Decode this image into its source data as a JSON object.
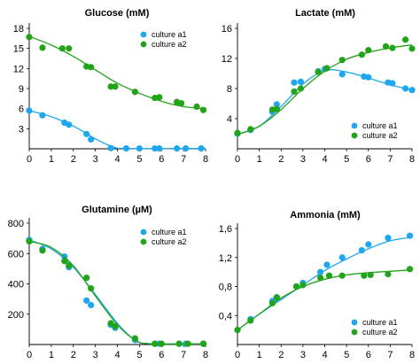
{
  "colors": {
    "culture_a1": "#1ea7f0",
    "culture_a2": "#21a31a"
  },
  "chart_data": [
    {
      "type": "scatter",
      "title": "Glucose (mM)",
      "xlim": [
        0,
        8
      ],
      "ylim": [
        0,
        18
      ],
      "x_ticks": [
        "0",
        "1",
        "2",
        "3",
        "4",
        "5",
        "6",
        "7",
        "8"
      ],
      "y_ticks": [
        "3",
        "6",
        "9",
        "12",
        "15",
        "18"
      ],
      "y_tick_values": [
        3,
        6,
        9,
        12,
        15,
        18
      ],
      "legend_position": "top-right",
      "series": [
        {
          "name": "culture a1",
          "color_key": "culture_a1",
          "points": [
            [
              0,
              5.7
            ],
            [
              0.6,
              5.0
            ],
            [
              1.6,
              3.9
            ],
            [
              1.8,
              3.6
            ],
            [
              2.6,
              2.2
            ],
            [
              2.8,
              1.4
            ],
            [
              3.7,
              0.1
            ],
            [
              4.4,
              0.05
            ],
            [
              5.0,
              0.05
            ],
            [
              5.7,
              0.05
            ],
            [
              5.9,
              0.05
            ],
            [
              6.7,
              0.05
            ],
            [
              7.1,
              0.05
            ],
            [
              7.8,
              0.05
            ]
          ],
          "fit": [
            [
              0,
              5.7
            ],
            [
              1,
              4.8
            ],
            [
              2,
              3.4
            ],
            [
              3,
              1.5
            ],
            [
              3.8,
              0.3
            ],
            [
              4.5,
              0.05
            ],
            [
              8,
              0.05
            ]
          ]
        },
        {
          "name": "culture a2",
          "color_key": "culture_a2",
          "points": [
            [
              0,
              16.7
            ],
            [
              0.6,
              15.1
            ],
            [
              1.5,
              15.0
            ],
            [
              1.8,
              15.0
            ],
            [
              2.6,
              12.3
            ],
            [
              2.8,
              12.2
            ],
            [
              3.7,
              9.3
            ],
            [
              3.9,
              9.3
            ],
            [
              4.8,
              8.5
            ],
            [
              5.7,
              7.6
            ],
            [
              5.9,
              7.7
            ],
            [
              6.7,
              7.0
            ],
            [
              6.9,
              6.8
            ],
            [
              7.6,
              6.3
            ],
            [
              7.9,
              5.8
            ]
          ],
          "fit": [
            [
              0,
              16.8
            ],
            [
              1,
              15.5
            ],
            [
              2,
              13.8
            ],
            [
              3,
              11.8
            ],
            [
              4,
              9.8
            ],
            [
              5,
              8.3
            ],
            [
              6,
              7.1
            ],
            [
              7,
              6.3
            ],
            [
              8,
              6.0
            ]
          ]
        }
      ]
    },
    {
      "type": "scatter",
      "title": "Lactate (mM)",
      "xlim": [
        0,
        8
      ],
      "ylim": [
        0,
        16
      ],
      "x_ticks": [
        "0",
        "1",
        "2",
        "3",
        "4",
        "5",
        "6",
        "7",
        "8"
      ],
      "y_ticks": [
        "4",
        "8",
        "12",
        "16"
      ],
      "y_tick_values": [
        4,
        8,
        12,
        16
      ],
      "legend_position": "bottom-right",
      "series": [
        {
          "name": "culture a1",
          "color_key": "culture_a1",
          "points": [
            [
              0,
              2.0
            ],
            [
              0.6,
              2.5
            ],
            [
              1.6,
              4.9
            ],
            [
              1.8,
              5.9
            ],
            [
              2.6,
              8.8
            ],
            [
              2.9,
              8.9
            ],
            [
              3.7,
              10.3
            ],
            [
              4.0,
              10.6
            ],
            [
              4.8,
              9.9
            ],
            [
              5.8,
              9.6
            ],
            [
              6.0,
              9.5
            ],
            [
              6.9,
              8.8
            ],
            [
              7.1,
              8.7
            ],
            [
              7.7,
              8.0
            ],
            [
              8.0,
              7.8
            ]
          ],
          "fit": [
            [
              0,
              1.9
            ],
            [
              1,
              3.0
            ],
            [
              2,
              5.6
            ],
            [
              3,
              8.6
            ],
            [
              4,
              10.4
            ],
            [
              5,
              10.2
            ],
            [
              6,
              9.4
            ],
            [
              7,
              8.5
            ],
            [
              8,
              7.8
            ]
          ]
        },
        {
          "name": "culture a2",
          "color_key": "culture_a2",
          "points": [
            [
              0,
              2.1
            ],
            [
              0.6,
              2.6
            ],
            [
              1.6,
              5.2
            ],
            [
              1.8,
              5.3
            ],
            [
              2.6,
              7.6
            ],
            [
              2.9,
              8.0
            ],
            [
              3.7,
              10.2
            ],
            [
              4.1,
              10.7
            ],
            [
              4.8,
              11.8
            ],
            [
              5.7,
              12.5
            ],
            [
              6.0,
              13.1
            ],
            [
              6.8,
              13.6
            ],
            [
              7.1,
              13.4
            ],
            [
              7.7,
              14.5
            ],
            [
              8.0,
              13.3
            ]
          ],
          "fit": [
            [
              0,
              1.9
            ],
            [
              1,
              3.0
            ],
            [
              2,
              5.2
            ],
            [
              3,
              8.0
            ],
            [
              4,
              10.3
            ],
            [
              5,
              11.9
            ],
            [
              6,
              12.8
            ],
            [
              7,
              13.4
            ],
            [
              8,
              13.8
            ]
          ]
        }
      ]
    },
    {
      "type": "scatter",
      "title": "Glutamine (µM)",
      "xlim": [
        0,
        8
      ],
      "ylim": [
        0,
        800
      ],
      "x_ticks": [
        "0",
        "1",
        "2",
        "3",
        "4",
        "5",
        "6",
        "7",
        "8"
      ],
      "y_ticks": [
        "200",
        "400",
        "600",
        "800"
      ],
      "y_tick_values": [
        200,
        400,
        600,
        800
      ],
      "legend_position": "top-right",
      "series": [
        {
          "name": "culture a1",
          "color_key": "culture_a1",
          "points": [
            [
              0,
              690
            ],
            [
              0.6,
              630
            ],
            [
              1.6,
              580
            ],
            [
              1.8,
              510
            ],
            [
              2.6,
              290
            ],
            [
              2.8,
              260
            ],
            [
              3.7,
              130
            ],
            [
              3.9,
              110
            ],
            [
              4.8,
              30
            ],
            [
              5.7,
              5
            ],
            [
              5.9,
              5
            ],
            [
              6.8,
              5
            ],
            [
              7.1,
              5
            ],
            [
              7.9,
              5
            ]
          ],
          "fit": [
            [
              0,
              690
            ],
            [
              1,
              630
            ],
            [
              2,
              510
            ],
            [
              3,
              330
            ],
            [
              4,
              140
            ],
            [
              4.8,
              30
            ],
            [
              5.5,
              5
            ],
            [
              8,
              5
            ]
          ]
        },
        {
          "name": "culture a2",
          "color_key": "culture_a2",
          "points": [
            [
              0,
              680
            ],
            [
              0.6,
              620
            ],
            [
              1.6,
              550
            ],
            [
              1.8,
              520
            ],
            [
              2.6,
              440
            ],
            [
              2.8,
              370
            ],
            [
              3.7,
              140
            ],
            [
              3.9,
              120
            ],
            [
              4.8,
              40
            ],
            [
              5.7,
              5
            ],
            [
              6.0,
              5
            ],
            [
              6.8,
              5
            ],
            [
              7.2,
              5
            ],
            [
              7.9,
              5
            ]
          ],
          "fit": [
            [
              0,
              680
            ],
            [
              1,
              640
            ],
            [
              2,
              520
            ],
            [
              3,
              320
            ],
            [
              4,
              130
            ],
            [
              4.8,
              30
            ],
            [
              5.5,
              5
            ],
            [
              8,
              5
            ]
          ]
        }
      ]
    },
    {
      "type": "scatter",
      "title": "Ammonia (mM)",
      "xlim": [
        0,
        8
      ],
      "ylim": [
        0,
        1.6
      ],
      "x_ticks": [
        "0",
        "1",
        "2",
        "3",
        "4",
        "5",
        "6",
        "7",
        "8"
      ],
      "y_ticks": [
        "0,4",
        "0,8",
        "1,2",
        "1,6"
      ],
      "y_tick_values": [
        0.4,
        0.8,
        1.2,
        1.6
      ],
      "legend_position": "bottom-right",
      "series": [
        {
          "name": "culture a1",
          "color_key": "culture_a1",
          "points": [
            [
              0,
              0.2
            ],
            [
              0.6,
              0.35
            ],
            [
              1.6,
              0.6
            ],
            [
              1.8,
              0.65
            ],
            [
              2.7,
              0.8
            ],
            [
              3.0,
              0.85
            ],
            [
              3.8,
              1.0
            ],
            [
              4.1,
              1.1
            ],
            [
              4.8,
              1.2
            ],
            [
              5.7,
              1.3
            ],
            [
              6.0,
              1.38
            ],
            [
              6.9,
              1.47
            ],
            [
              7.9,
              1.5
            ]
          ],
          "fit": [
            [
              0,
              0.2
            ],
            [
              1,
              0.42
            ],
            [
              2,
              0.62
            ],
            [
              3,
              0.82
            ],
            [
              4,
              1.02
            ],
            [
              5,
              1.18
            ],
            [
              6,
              1.32
            ],
            [
              7,
              1.43
            ],
            [
              8,
              1.48
            ]
          ]
        },
        {
          "name": "culture a2",
          "color_key": "culture_a2",
          "points": [
            [
              0,
              0.2
            ],
            [
              0.6,
              0.33
            ],
            [
              1.6,
              0.57
            ],
            [
              1.8,
              0.65
            ],
            [
              2.7,
              0.8
            ],
            [
              3.0,
              0.82
            ],
            [
              3.8,
              0.92
            ],
            [
              4.2,
              0.95
            ],
            [
              4.8,
              0.95
            ],
            [
              5.8,
              0.95
            ],
            [
              6.1,
              0.96
            ],
            [
              6.9,
              0.97
            ],
            [
              7.9,
              1.04
            ]
          ],
          "fit": [
            [
              0,
              0.2
            ],
            [
              1,
              0.42
            ],
            [
              2,
              0.64
            ],
            [
              3,
              0.8
            ],
            [
              4,
              0.9
            ],
            [
              5,
              0.96
            ],
            [
              6,
              0.99
            ],
            [
              7,
              1.01
            ],
            [
              8,
              1.03
            ]
          ]
        }
      ]
    }
  ]
}
